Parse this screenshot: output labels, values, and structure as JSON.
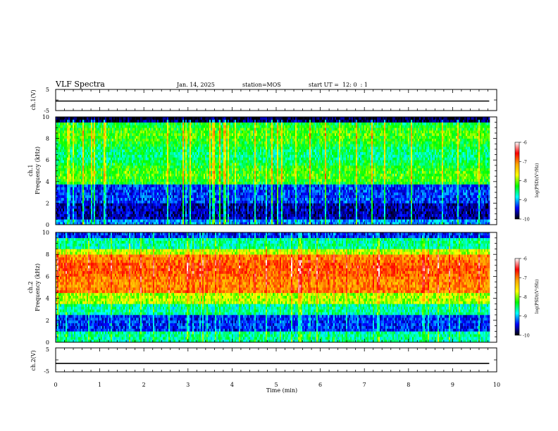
{
  "header": {
    "title": "VLF Spectra",
    "date": "Jan. 14, 2025",
    "station": "station=MOS",
    "start_ut": "start UT =  12: 0  : 1"
  },
  "colorbar": {
    "label": "log(PSD)(V²/Hz)",
    "ticks": [
      "-6",
      "-7",
      "-8",
      "-9",
      "-10"
    ],
    "colors": [
      "#ffffff",
      "#ff0000",
      "#ffa500",
      "#ffff00",
      "#00ff00",
      "#00ffff",
      "#0000ff",
      "#000000"
    ]
  },
  "chart_data": [
    {
      "type": "line",
      "name": "ch1-waveform",
      "ylabel": "ch.1(V)",
      "ylim": [
        -5,
        5
      ],
      "yticks": [
        "5",
        "-5"
      ],
      "trace_level": -0.5
    },
    {
      "type": "heatmap",
      "name": "ch1-spectrogram",
      "ylabel_channel": "ch.1",
      "ylabel": "Frequency (kHz)",
      "ylim": [
        0,
        10
      ],
      "yticks": [
        "0",
        "2",
        "4",
        "6",
        "8",
        "10"
      ],
      "xlim": [
        0,
        10
      ],
      "data_end_min": 9.83,
      "color_scale_min": -10,
      "color_scale_max": -6
    },
    {
      "type": "heatmap",
      "name": "ch2-spectrogram",
      "ylabel_channel": "ch.2",
      "ylabel": "Frequency (kHz)",
      "ylim": [
        0,
        10
      ],
      "yticks": [
        "0",
        "2",
        "4",
        "6",
        "8",
        "10"
      ],
      "xlim": [
        0,
        10
      ],
      "data_end_min": 9.83,
      "color_scale_min": -10,
      "color_scale_max": -6
    },
    {
      "type": "line",
      "name": "ch2-waveform",
      "ylabel": "ch.2(V)",
      "ylim": [
        -5,
        5
      ],
      "yticks": [
        "5",
        "-5"
      ],
      "trace_level": -1.5,
      "xlabel": "Time (min)",
      "xlim": [
        0,
        10
      ],
      "xticks": [
        "0",
        "1",
        "2",
        "3",
        "4",
        "5",
        "6",
        "7",
        "8",
        "9",
        "10"
      ]
    }
  ]
}
